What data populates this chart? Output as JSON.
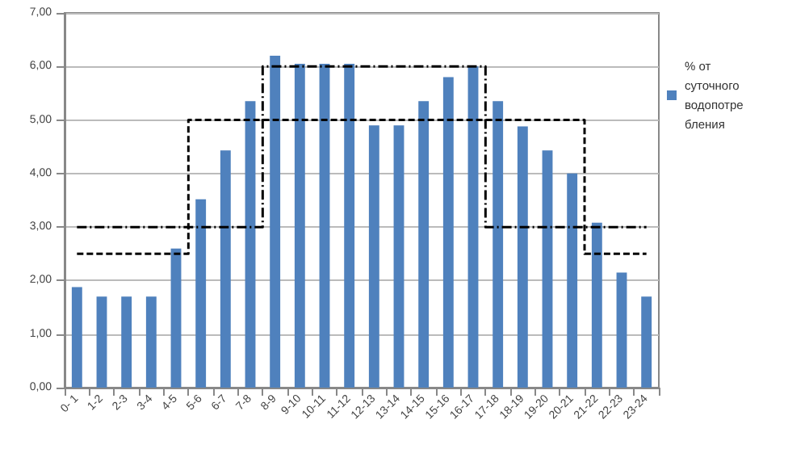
{
  "chart_data": {
    "type": "bar",
    "categories": [
      "0- 1",
      "1-2",
      "2-3",
      "3-4",
      "4-5",
      "5-6",
      "6-7",
      "7-8",
      "8-9",
      "9-10",
      "10-11",
      "11-12",
      "12-13",
      "13-14",
      "14-15",
      "15-16",
      "16-17",
      "17-18",
      "18-19",
      "19-20",
      "20-21",
      "21-22",
      "22-23",
      "23-24"
    ],
    "series": [
      {
        "name": "% от суточного водопотребления",
        "color": "#4f81bd",
        "values": [
          1.88,
          1.7,
          1.7,
          1.7,
          2.6,
          3.52,
          4.43,
          5.35,
          6.2,
          6.05,
          6.05,
          6.05,
          4.9,
          4.9,
          5.35,
          5.8,
          6.0,
          5.35,
          4.88,
          4.43,
          4.0,
          3.08,
          2.15,
          1.7
        ]
      },
      {
        "type": "step",
        "color": "#000000",
        "line_style": "dashed",
        "values": [
          2.5,
          2.5,
          2.5,
          2.5,
          2.5,
          5,
          5,
          5,
          5,
          5,
          5,
          5,
          5,
          5,
          5,
          5,
          5,
          5,
          5,
          5,
          5,
          2.5,
          2.5,
          2.5
        ]
      },
      {
        "type": "step",
        "color": "#000000",
        "line_style": "dotted",
        "values": [
          3,
          3,
          3,
          3,
          3,
          3,
          3,
          3,
          6,
          6,
          6,
          6,
          6,
          6,
          6,
          6,
          6,
          3,
          3,
          3,
          3,
          3,
          3,
          3
        ]
      }
    ],
    "ylim": [
      0,
      7
    ],
    "yticks": [
      {
        "value": 0,
        "label": "0,00"
      },
      {
        "value": 1,
        "label": "1,00"
      },
      {
        "value": 2,
        "label": "2,00"
      },
      {
        "value": 3,
        "label": "3,00"
      },
      {
        "value": 4,
        "label": "4,00"
      },
      {
        "value": 5,
        "label": "5,00"
      },
      {
        "value": 6,
        "label": "6,00"
      },
      {
        "value": 7,
        "label": "7,00"
      }
    ],
    "grid": "y",
    "legend": "right"
  }
}
